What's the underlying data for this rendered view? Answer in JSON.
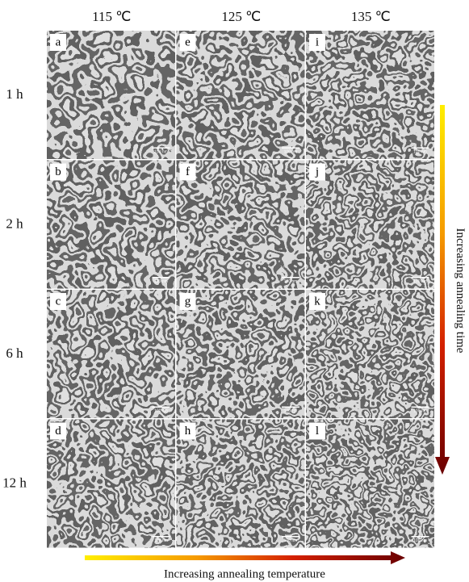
{
  "column_headers": [
    "115 ℃",
    "125 ℃",
    "135 ℃"
  ],
  "row_labels": [
    "1 h",
    "2 h",
    "6 h",
    "12 h"
  ],
  "panels": [
    {
      "letter": "a",
      "scale_bar": "100 nm"
    },
    {
      "letter": "b",
      "scale_bar": "100 nm"
    },
    {
      "letter": "c",
      "scale_bar": "100 nm"
    },
    {
      "letter": "d",
      "scale_bar": "100 nm"
    },
    {
      "letter": "e",
      "scale_bar": "100 nm"
    },
    {
      "letter": "f",
      "scale_bar": "100 nm"
    },
    {
      "letter": "g",
      "scale_bar": "100 nm"
    },
    {
      "letter": "h",
      "scale_bar": "100 nm"
    },
    {
      "letter": "i",
      "scale_bar": "100 nm"
    },
    {
      "letter": "j",
      "scale_bar": "100 nm"
    },
    {
      "letter": "k",
      "scale_bar": "100 nm"
    },
    {
      "letter": "l",
      "scale_bar": "100 nm"
    }
  ],
  "vertical_arrow_label": "Increasing annealing time",
  "horizontal_arrow_label": "Increasing annealing temperature"
}
